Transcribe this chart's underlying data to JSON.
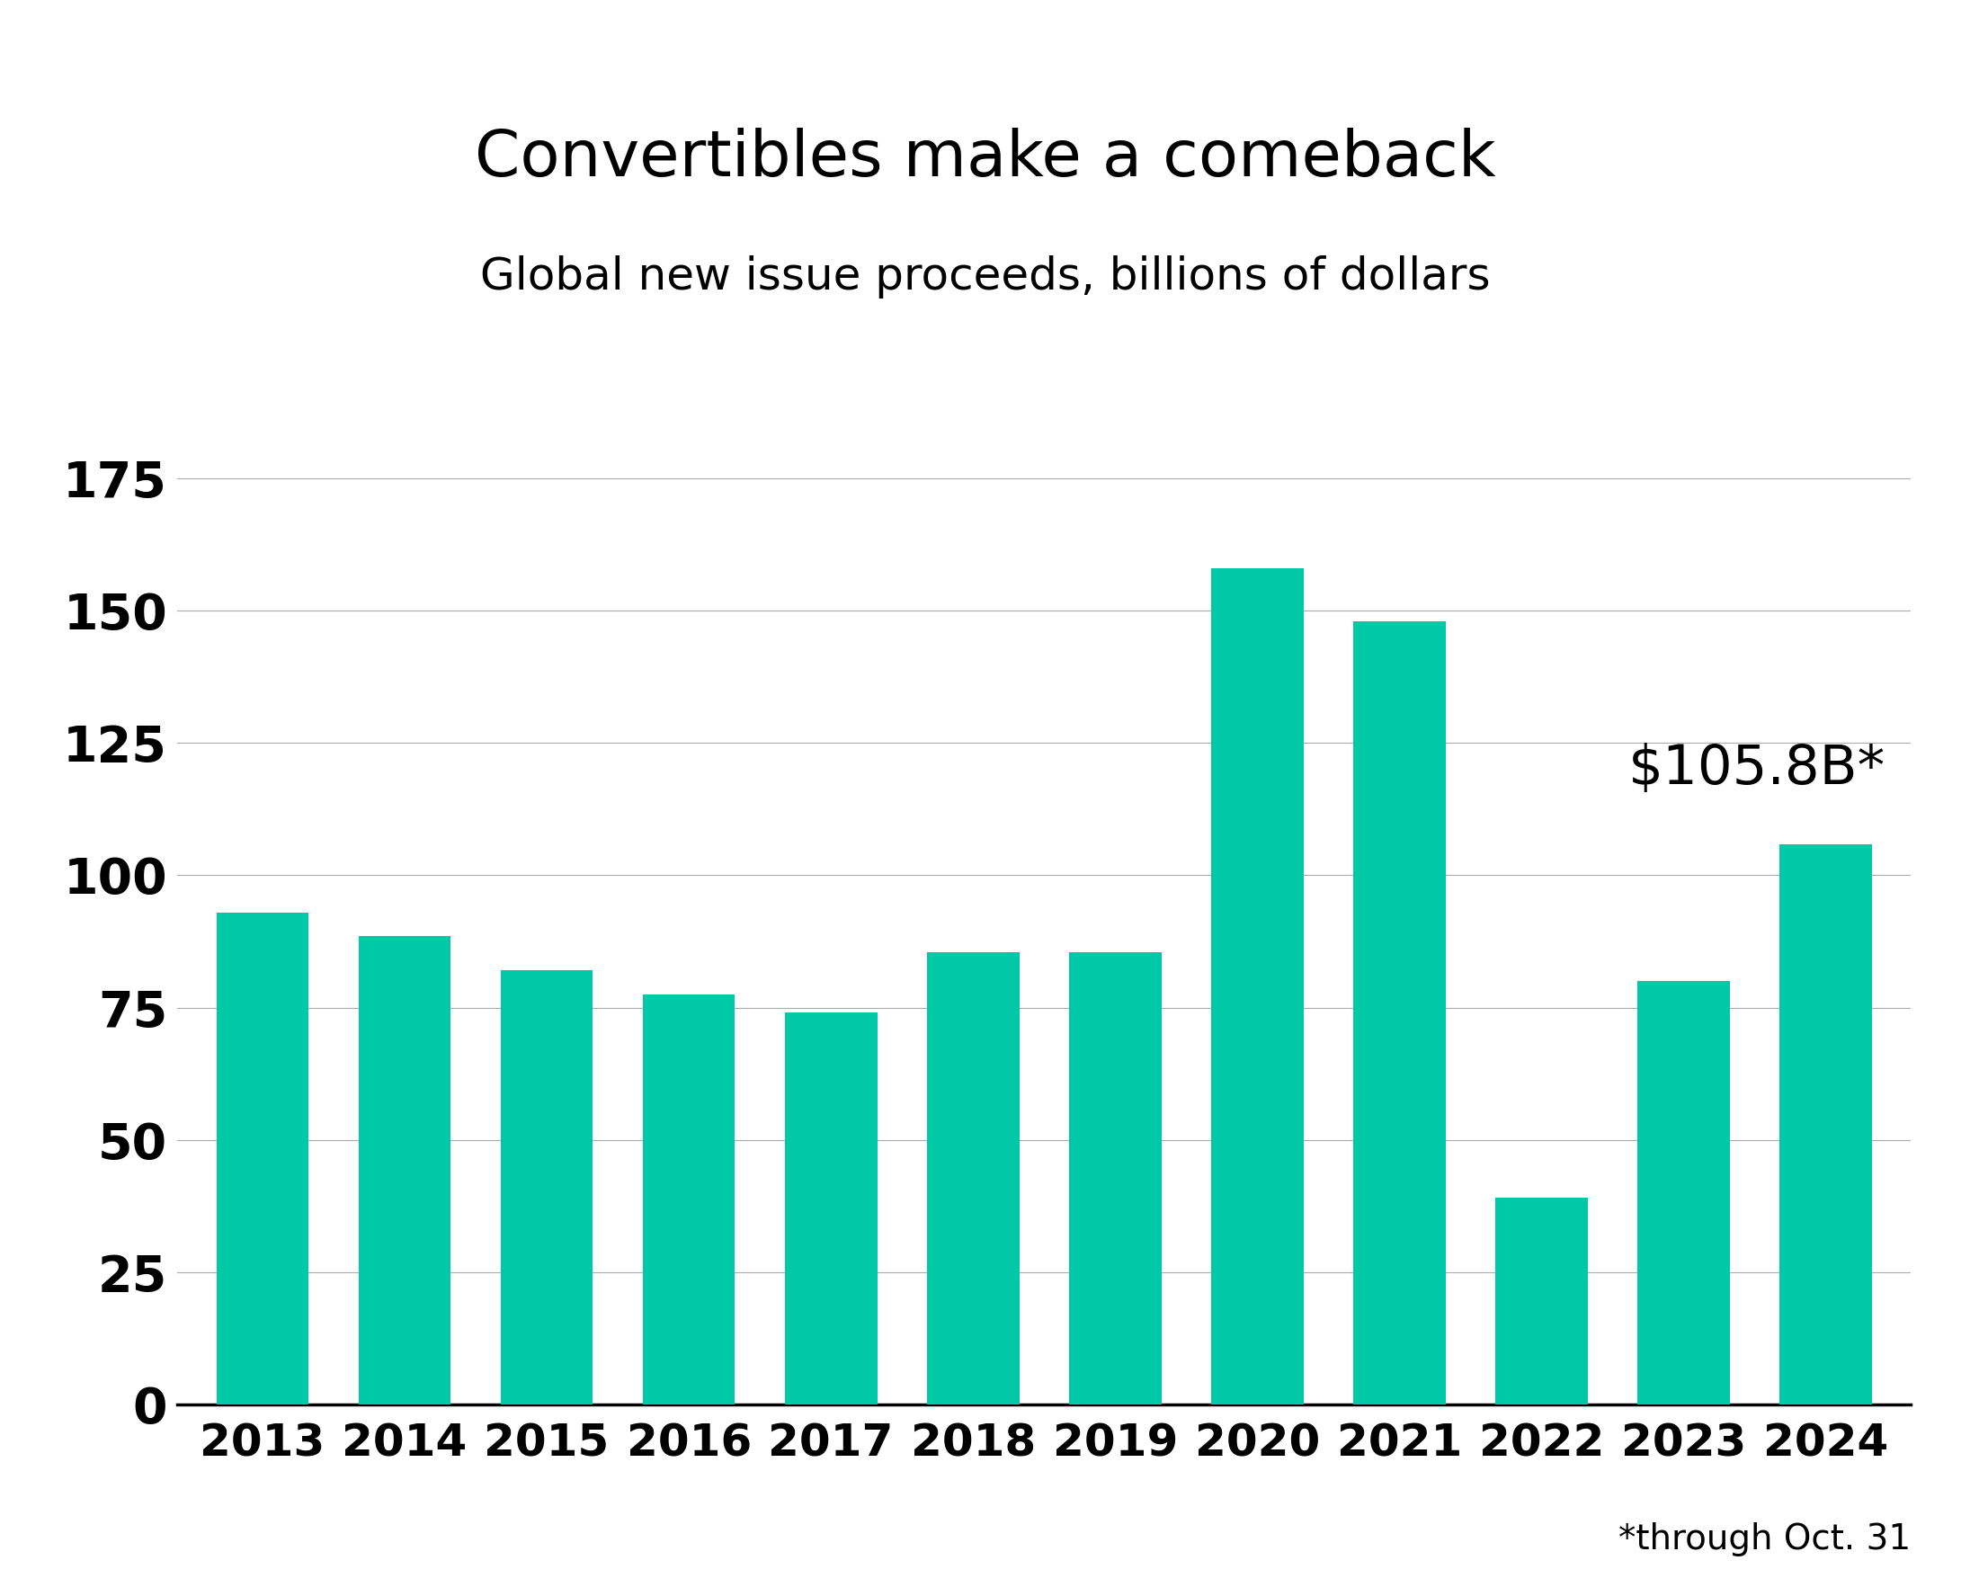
{
  "title": "Convertibles make a comeback",
  "subtitle": "Global new issue proceeds, billions of dollars",
  "annotation": "$105.8B*",
  "footnote": "*through Oct. 31",
  "categories": [
    "2013",
    "2014",
    "2015",
    "2016",
    "2017",
    "2018",
    "2019",
    "2020",
    "2021",
    "2022",
    "2023",
    "2024"
  ],
  "values": [
    93.0,
    88.5,
    82.0,
    77.5,
    74.0,
    85.5,
    85.5,
    158.0,
    148.0,
    39.0,
    80.0,
    105.8
  ],
  "bar_color": "#00C9A7",
  "background_color": "#ffffff",
  "title_fontsize": 52,
  "subtitle_fontsize": 36,
  "ytick_fontsize": 40,
  "xtick_fontsize": 36,
  "annotation_fontsize": 44,
  "footnote_fontsize": 28,
  "ylim": [
    0,
    190
  ],
  "yticks": [
    0,
    25,
    50,
    75,
    100,
    125,
    150,
    175
  ],
  "grid_color": "#aaaaaa",
  "axis_color": "#000000"
}
